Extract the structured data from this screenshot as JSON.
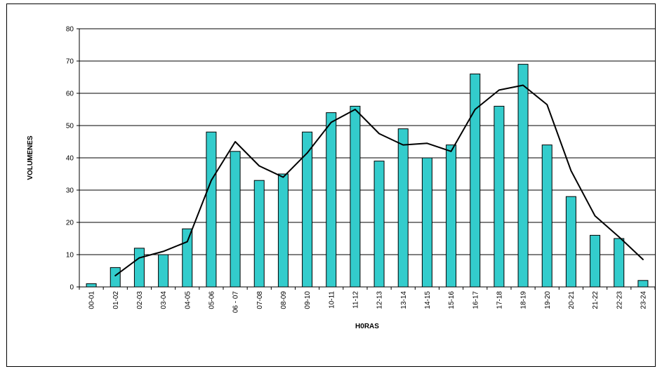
{
  "chart_data": {
    "type": "bar",
    "title": "",
    "xlabel": "H0RAS",
    "ylabel": "VOLUMENES",
    "ylim": [
      0,
      80
    ],
    "yticks": [
      0,
      10,
      20,
      30,
      40,
      50,
      60,
      70,
      80
    ],
    "grid": true,
    "categories": [
      "00-01",
      "01-02",
      "02-03",
      "03-04",
      "04-05",
      "05-06",
      "06 - 07",
      "07-08",
      "08-09",
      "09-10",
      "10-11",
      "11-12",
      "12-13",
      "13-14",
      "14-15",
      "15-16",
      "16-17",
      "17-18",
      "18-19",
      "19-20",
      "20-21",
      "21-22",
      "22-23",
      "23-24"
    ],
    "series": [
      {
        "type": "bar",
        "color": "#33cccc",
        "values": [
          1,
          6,
          12,
          10,
          18,
          48,
          42,
          33,
          35,
          48,
          54,
          56,
          39,
          49,
          40,
          44,
          66,
          56,
          69,
          44,
          28,
          16,
          15,
          2
        ]
      },
      {
        "type": "line",
        "color": "#000000",
        "values": [
          null,
          3.5,
          9,
          11,
          14,
          33,
          45,
          37.5,
          34,
          41.5,
          51,
          55,
          47.5,
          44,
          44.5,
          42,
          55,
          61,
          62.5,
          56.5,
          36,
          22,
          15.5,
          8.5
        ]
      }
    ]
  }
}
